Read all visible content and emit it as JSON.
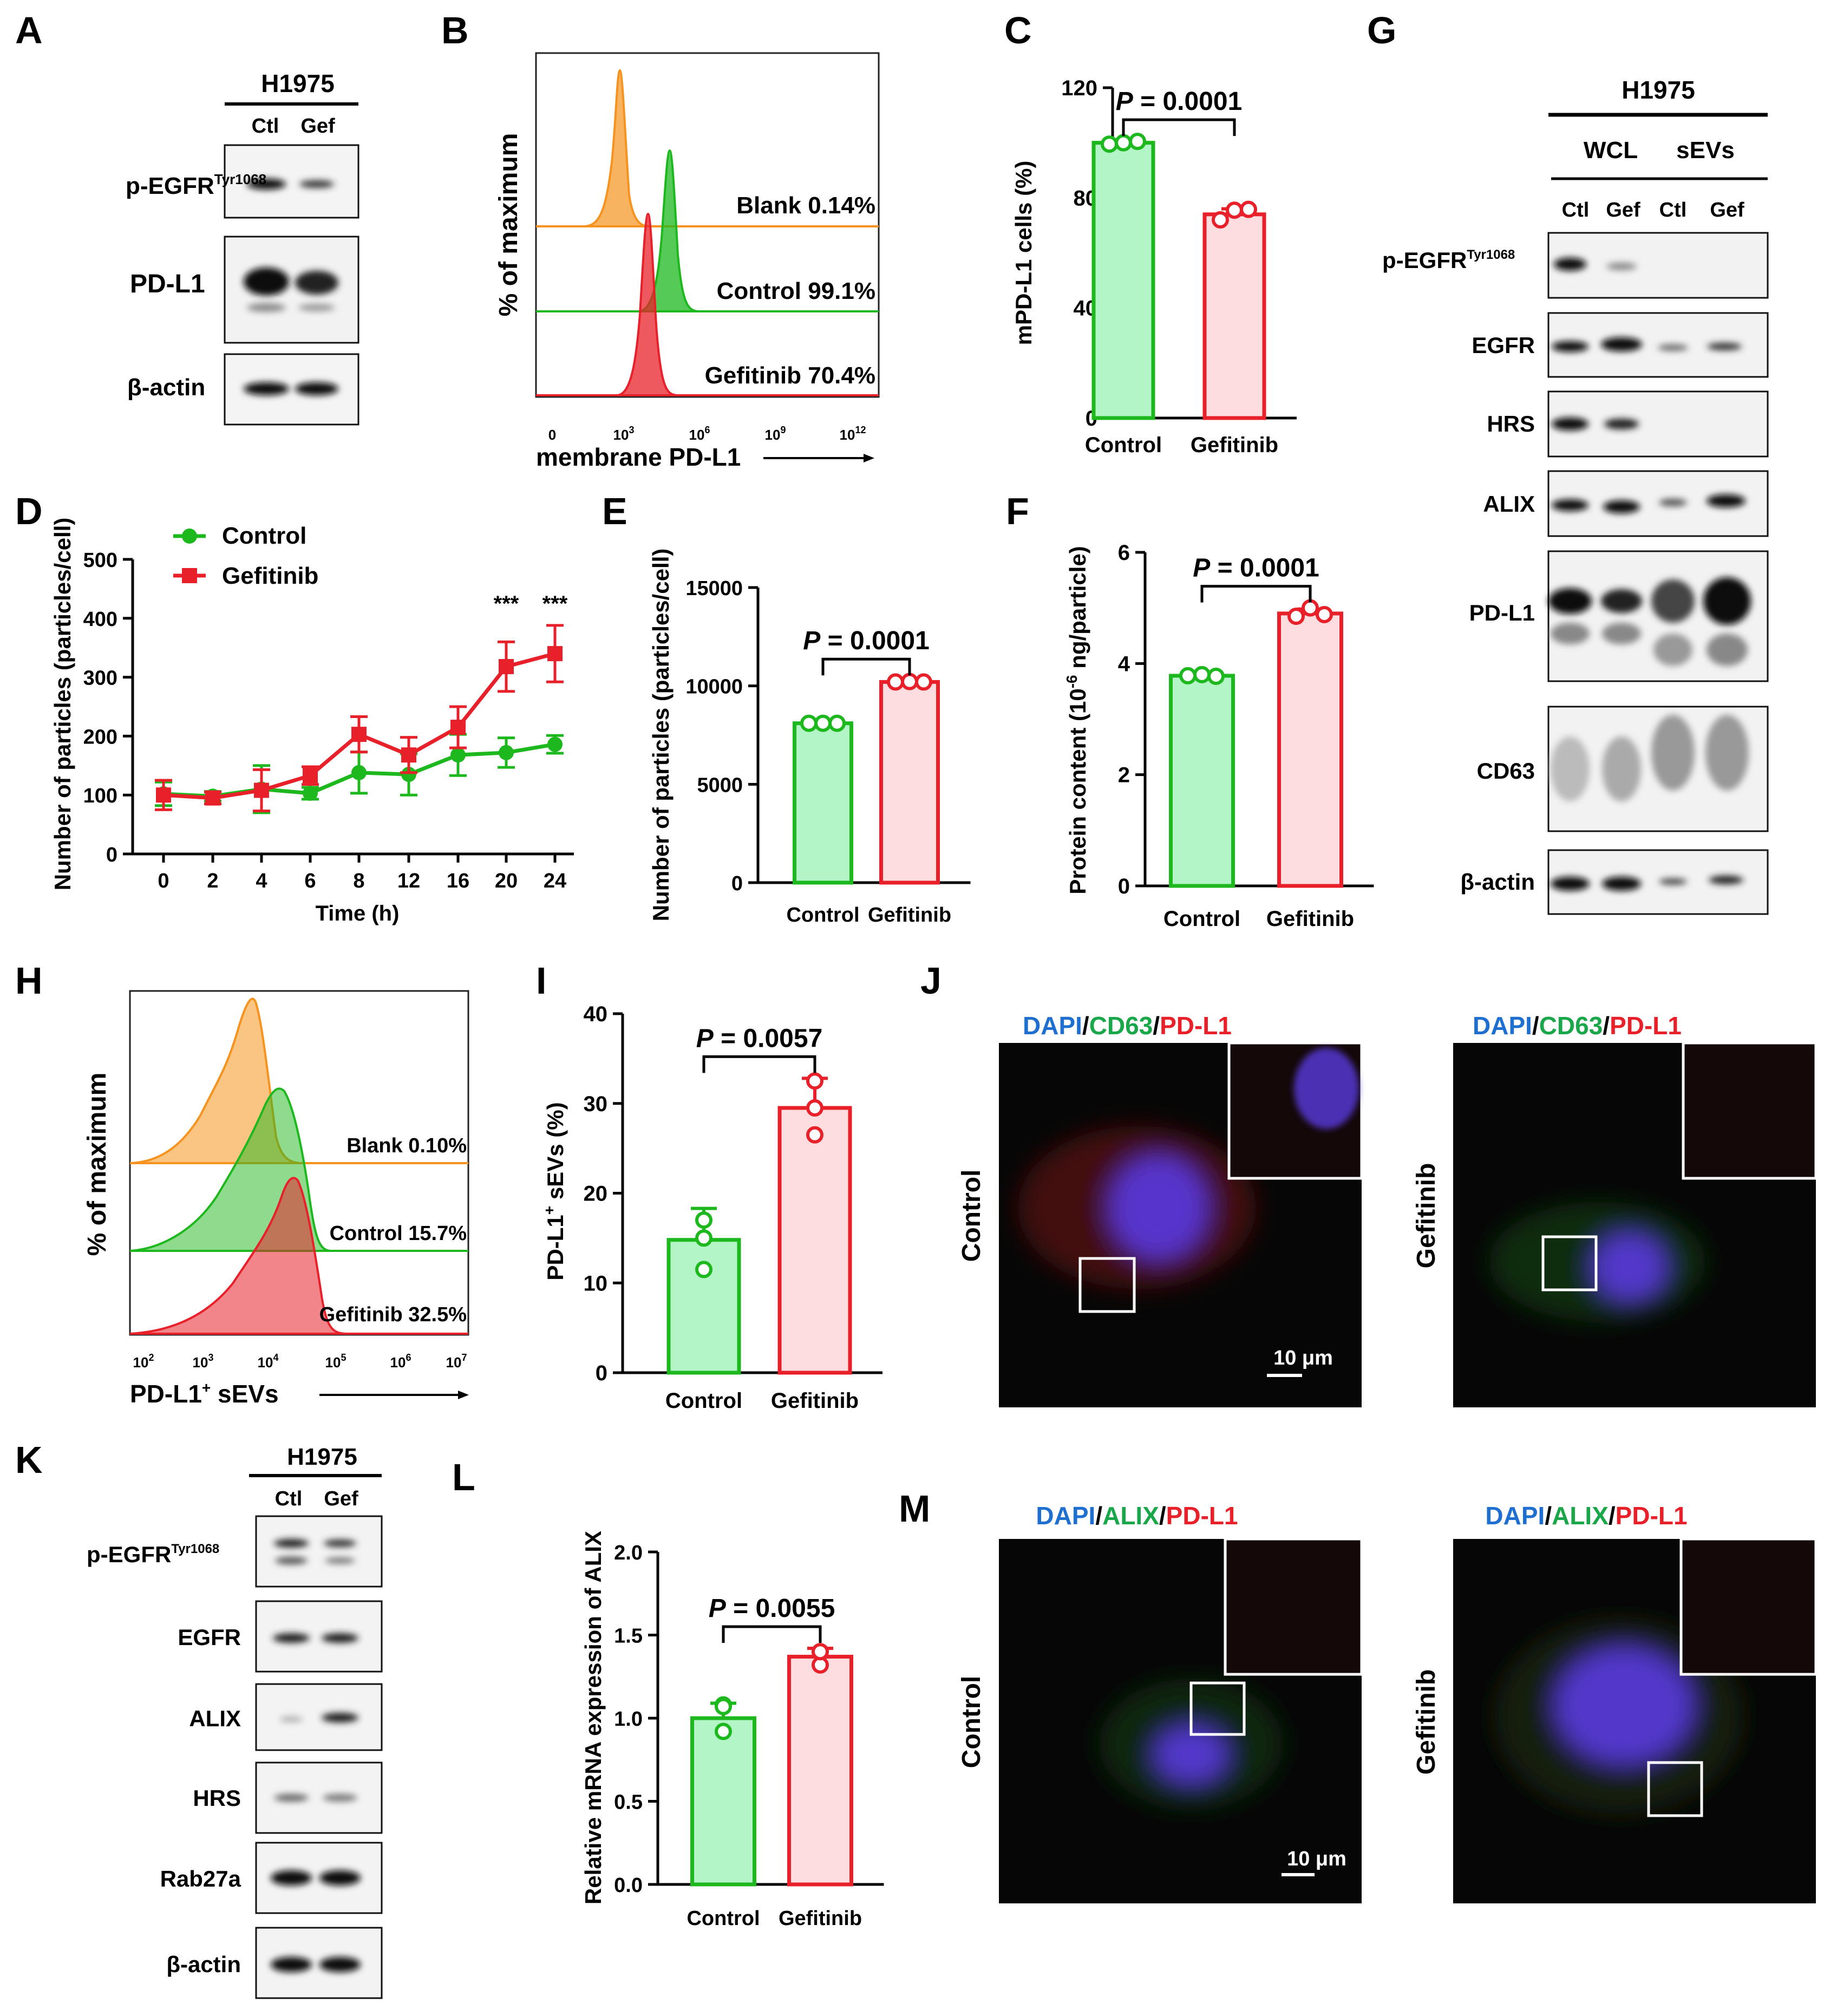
{
  "figure": {
    "panels": {
      "A": {
        "letter": "A",
        "cell_line": "H1975",
        "lanes": [
          "Ctl",
          "Gef"
        ],
        "rows": [
          {
            "label": "p-EGFR",
            "sup": "Tyr1068"
          },
          {
            "label": "PD-L1",
            "sup": ""
          },
          {
            "label": "β-actin",
            "sup": ""
          }
        ]
      },
      "B": {
        "letter": "B",
        "ylabel": "% of maximum",
        "xlabel": "membrane PD-L1",
        "xticks": [
          {
            "base": "0",
            "exp": ""
          },
          {
            "base": "10",
            "exp": "3"
          },
          {
            "base": "10",
            "exp": "6"
          },
          {
            "base": "10",
            "exp": "9"
          },
          {
            "base": "10",
            "exp": "12"
          }
        ],
        "tracks": [
          {
            "label": "Blank 0.14%",
            "color": "#F5931E"
          },
          {
            "label": "Control 99.1%",
            "color": "#1DB81D"
          },
          {
            "label": "Gefitinib 70.4%",
            "color": "#E8202A"
          }
        ]
      },
      "C": {
        "letter": "C"
      },
      "D": {
        "letter": "D"
      },
      "E": {
        "letter": "E"
      },
      "F": {
        "letter": "F"
      },
      "G": {
        "letter": "G",
        "cell_line": "H1975",
        "groups": [
          "WCL",
          "sEVs"
        ],
        "lanes": [
          "Ctl",
          "Gef",
          "Ctl",
          "Gef"
        ],
        "rows": [
          {
            "label": "p-EGFR",
            "sup": "Tyr1068"
          },
          {
            "label": "EGFR",
            "sup": ""
          },
          {
            "label": "HRS",
            "sup": ""
          },
          {
            "label": "ALIX",
            "sup": ""
          },
          {
            "label": "PD-L1",
            "sup": ""
          },
          {
            "label": "CD63",
            "sup": ""
          },
          {
            "label": "β-actin",
            "sup": ""
          }
        ]
      },
      "H": {
        "letter": "H",
        "ylabel": "% of maximum",
        "xlabel_base": "PD-L1",
        "xlabel_sup": "+",
        "xlabel_rest": " sEVs",
        "xticks": [
          {
            "base": "10",
            "exp": "2"
          },
          {
            "base": "10",
            "exp": "3"
          },
          {
            "base": "10",
            "exp": "4"
          },
          {
            "base": "10",
            "exp": "5"
          },
          {
            "base": "10",
            "exp": "6"
          },
          {
            "base": "10",
            "exp": "7"
          }
        ],
        "tracks": [
          {
            "label": "Blank 0.10%",
            "color": "#F5931E"
          },
          {
            "label": "Control 15.7%",
            "color": "#1DB81D"
          },
          {
            "label": "Gefitinib 32.5%",
            "color": "#E8202A"
          }
        ]
      },
      "I": {
        "letter": "I"
      },
      "J": {
        "letter": "J",
        "stain": [
          "DAPI",
          "/",
          "CD63",
          "/",
          "PD-L1"
        ],
        "conditions": [
          "Control",
          "Gefitinib"
        ],
        "scale_bar": "10 μm"
      },
      "K": {
        "letter": "K",
        "cell_line": "H1975",
        "lanes": [
          "Ctl",
          "Gef"
        ],
        "rows": [
          {
            "label": "p-EGFR",
            "sup": "Tyr1068"
          },
          {
            "label": "EGFR",
            "sup": ""
          },
          {
            "label": "ALIX",
            "sup": ""
          },
          {
            "label": "HRS",
            "sup": ""
          },
          {
            "label": "Rab27a",
            "sup": ""
          },
          {
            "label": "β-actin",
            "sup": ""
          }
        ]
      },
      "L": {
        "letter": "L"
      },
      "M": {
        "letter": "M",
        "stain": [
          "DAPI",
          "/",
          "ALIX",
          "/",
          "PD-L1"
        ],
        "conditions": [
          "Control",
          "Gefitinib"
        ],
        "scale_bar": "10 μm"
      }
    },
    "colors": {
      "green": "#1DB81D",
      "red": "#E8202A",
      "green_fill": "#B3F5C6",
      "red_fill": "#FDDDE0",
      "dapi": "#1F6FD1",
      "stain_green": "#1AA74A",
      "stain_red": "#E8202A"
    }
  },
  "chart_data": [
    {
      "panel": "C",
      "type": "bar",
      "categories": [
        "Control",
        "Gefitinib"
      ],
      "values": [
        100,
        74
      ],
      "points": [
        [
          99.5,
          100,
          100.5
        ],
        [
          72,
          75.5,
          75.8
        ]
      ],
      "error": [
        0.5,
        2
      ],
      "ylabel": "mPD-L1 cells (%)",
      "ylim": [
        0,
        120
      ],
      "yticks": [
        0,
        40,
        80,
        120
      ],
      "pvalue_label": "P",
      "pvalue_text": " = 0.0001"
    },
    {
      "panel": "D",
      "type": "line",
      "x_labels": [
        "0",
        "2",
        "4",
        "6",
        "8",
        "12",
        "16",
        "20",
        "24"
      ],
      "xlabel": "Time (h)",
      "ylabel": "Number of particles (particles/cell)",
      "ylim": [
        0,
        500
      ],
      "yticks": [
        0,
        100,
        200,
        300,
        400,
        500
      ],
      "series": [
        {
          "name": "Control",
          "values": [
            102,
            98,
            110,
            103,
            138,
            135,
            168,
            172,
            186
          ],
          "error": [
            20,
            8,
            40,
            10,
            35,
            35,
            35,
            25,
            15
          ]
        },
        {
          "name": "Gefitinib",
          "values": [
            100,
            95,
            108,
            133,
            203,
            168,
            215,
            318,
            340
          ],
          "error": [
            25,
            10,
            35,
            15,
            30,
            30,
            35,
            42,
            48
          ]
        }
      ],
      "significance": [
        {
          "x": "20",
          "label": "***"
        },
        {
          "x": "24",
          "label": "***"
        }
      ]
    },
    {
      "panel": "E",
      "type": "bar",
      "categories": [
        "Control",
        "Gefitinib"
      ],
      "values": [
        8100,
        10200
      ],
      "points": [
        [
          8100,
          8100,
          8100
        ],
        [
          10200,
          10220,
          10200
        ]
      ],
      "error": [
        40,
        60
      ],
      "ylabel": "Number of particles (particles/cell)",
      "ylim": [
        0,
        15000
      ],
      "yticks": [
        0,
        5000,
        10000,
        15000
      ],
      "pvalue_label": "P",
      "pvalue_text": " = 0.0001"
    },
    {
      "panel": "F",
      "type": "bar",
      "categories": [
        "Control",
        "Gefitinib"
      ],
      "values": [
        3.78,
        4.9
      ],
      "points": [
        [
          3.78,
          3.8,
          3.77
        ],
        [
          4.85,
          5.0,
          4.88
        ]
      ],
      "error": [
        0.03,
        0.08
      ],
      "ylabel_pre": "Protein content (10",
      "ylabel_sup": "-6",
      "ylabel_post": " ng/particle)",
      "ylim": [
        0,
        6
      ],
      "yticks": [
        0,
        2,
        4,
        6
      ],
      "pvalue_label": "P",
      "pvalue_text": " = 0.0001"
    },
    {
      "panel": "I",
      "type": "bar",
      "categories": [
        "Control",
        "Gefitinib"
      ],
      "values": [
        14.8,
        29.5
      ],
      "points": [
        [
          17,
          11.5,
          15
        ],
        [
          32.5,
          26.5,
          29.5
        ]
      ],
      "error": [
        3.5,
        3.3
      ],
      "ylabel_pre": "PD-L1",
      "ylabel_sup": "+",
      "ylabel_post": " sEVs (%)",
      "ylim": [
        0,
        40
      ],
      "yticks": [
        0,
        10,
        20,
        30,
        40
      ],
      "pvalue_label": "P",
      "pvalue_text": " = 0.0057"
    },
    {
      "panel": "L",
      "type": "bar",
      "categories": [
        "Control",
        "Gefitinib"
      ],
      "values": [
        1.0,
        1.37
      ],
      "points": [
        [
          1.08,
          0.92,
          1.07
        ],
        [
          1.4,
          1.32,
          1.4
        ]
      ],
      "error": [
        0.09,
        0.05
      ],
      "ylabel": "Relative mRNA expression of ALIX",
      "ylim": [
        0,
        2.0
      ],
      "yticks": [
        0.0,
        0.5,
        1.0,
        1.5,
        2.0
      ],
      "pvalue_label": "P",
      "pvalue_text": " = 0.0055"
    }
  ]
}
